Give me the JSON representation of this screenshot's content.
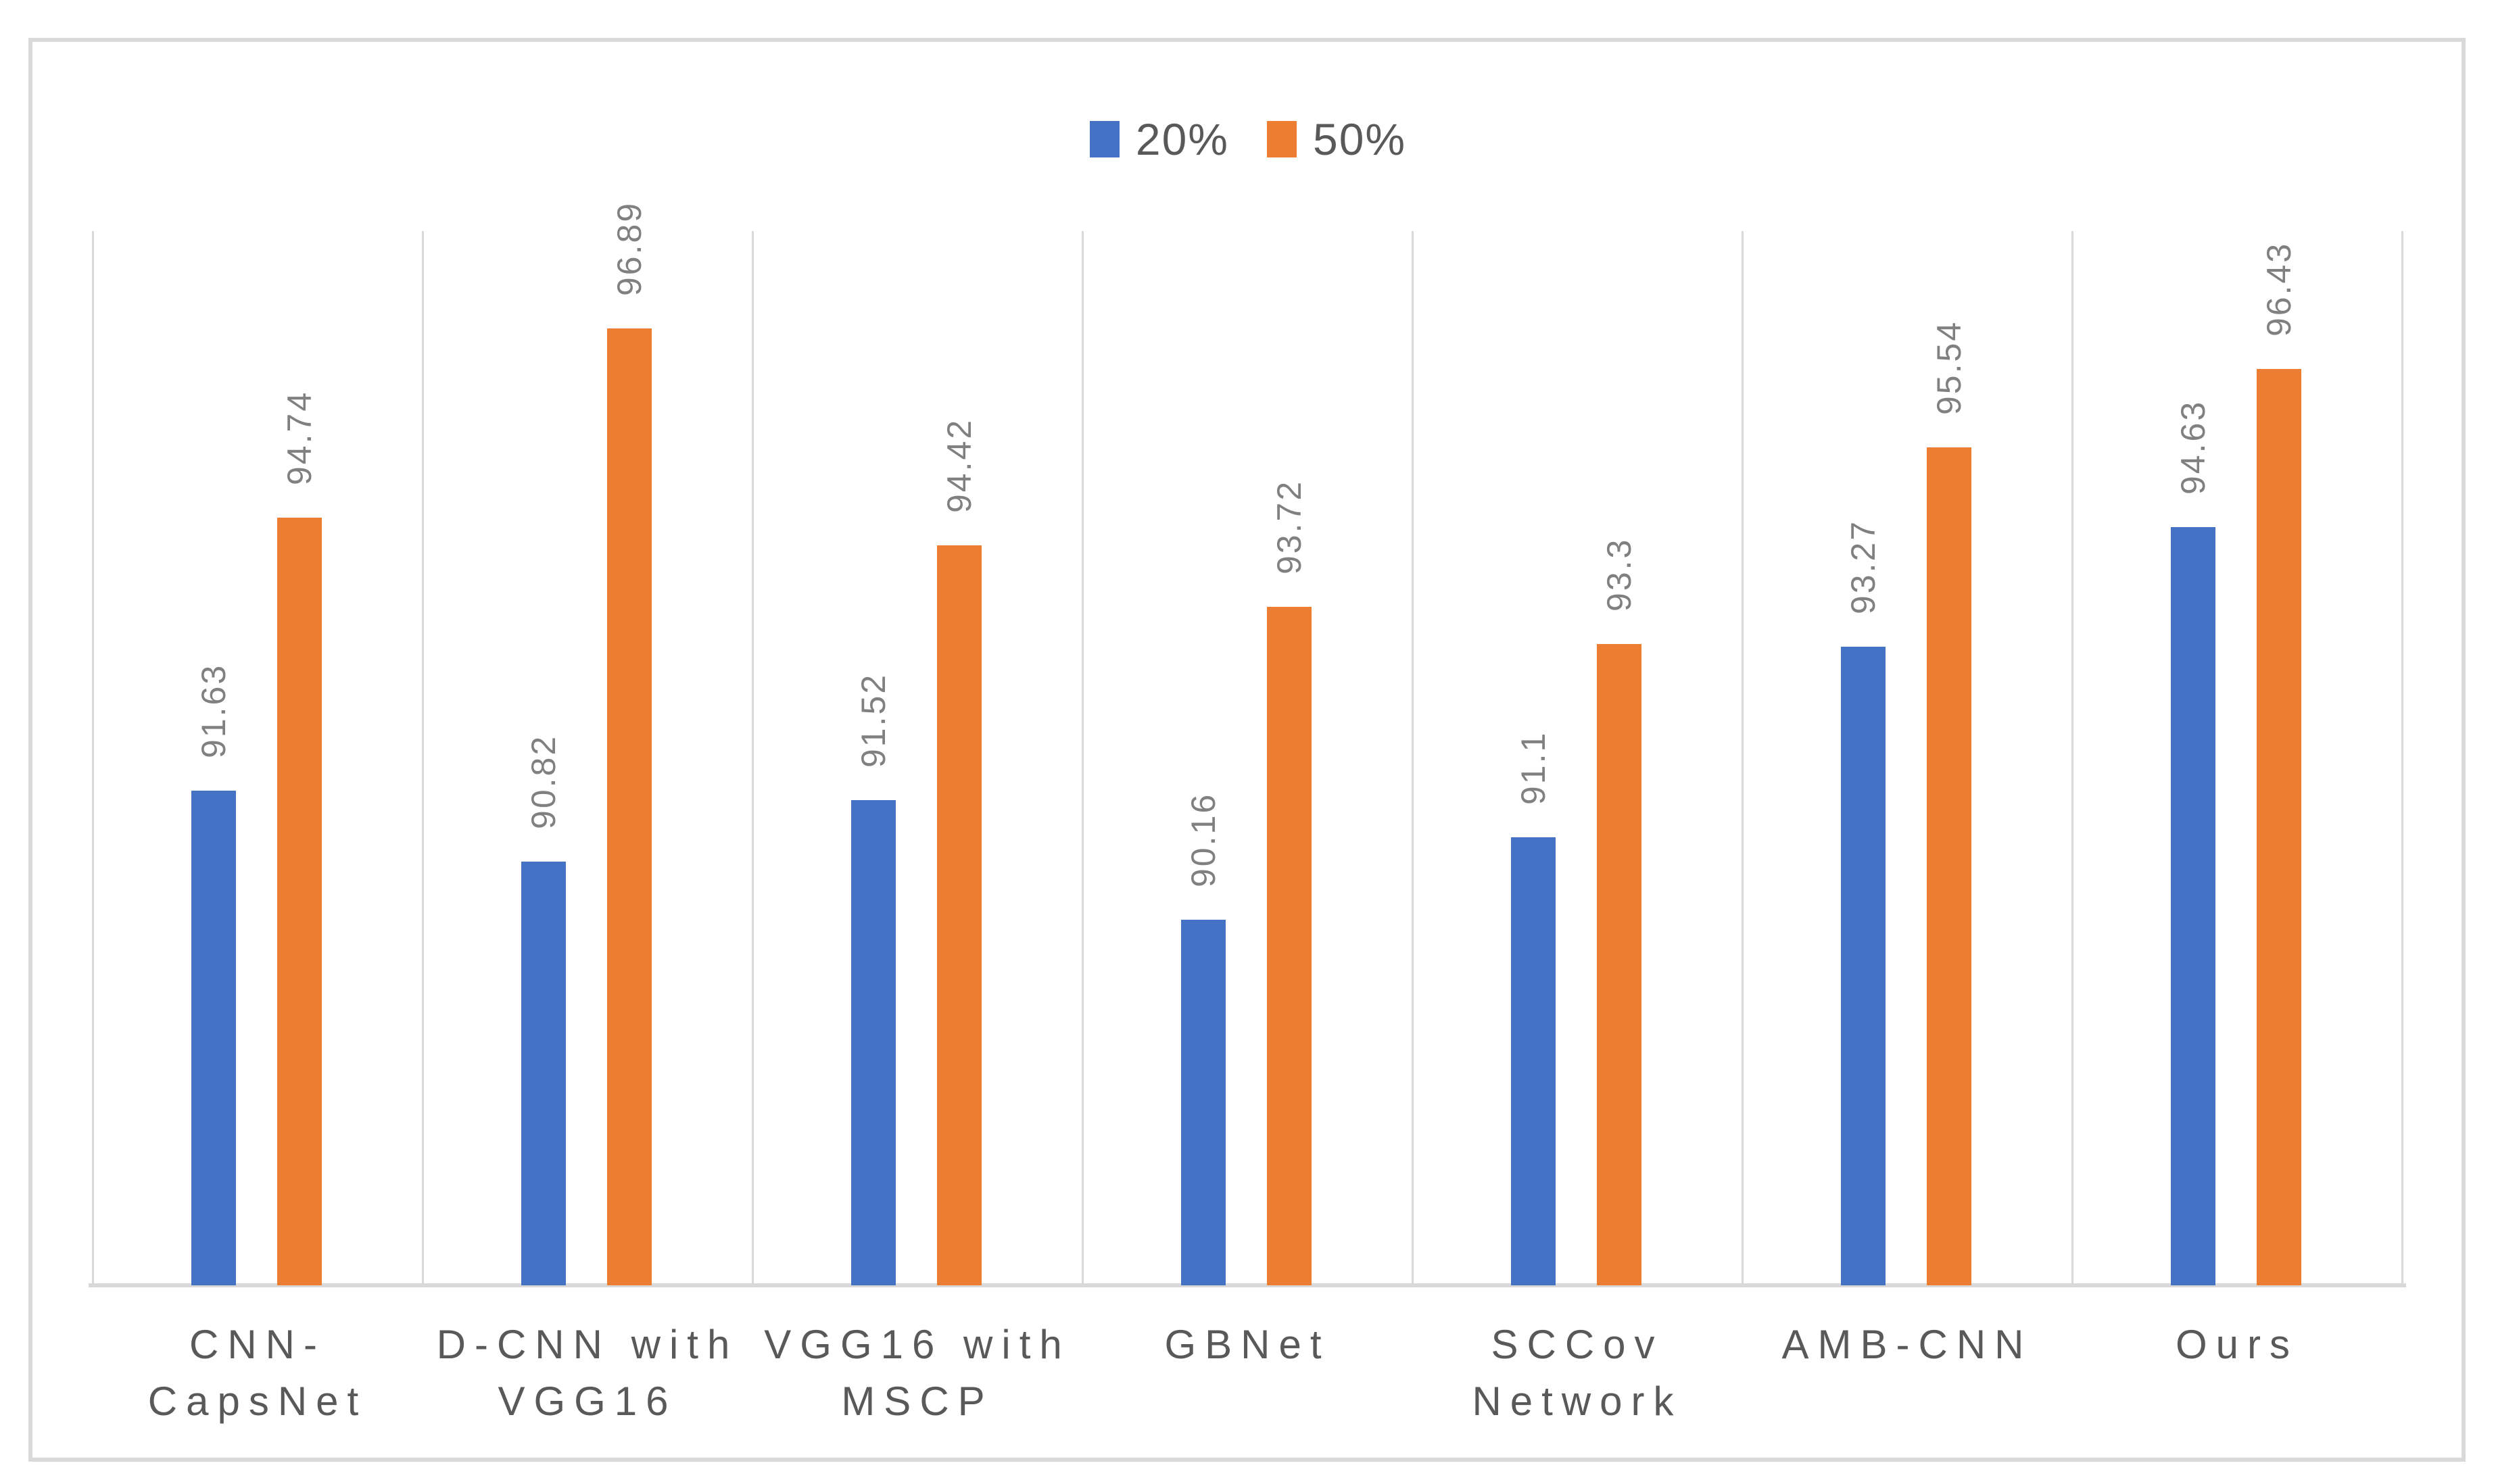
{
  "chart_data": {
    "type": "bar",
    "title": "",
    "categories": [
      "CNN-CapsNet",
      "D-CNN with\nVGG16",
      "VGG16 with\nMSCP",
      "GBNet",
      "SCCov\nNetwork",
      "AMB-CNN",
      "Ours"
    ],
    "series": [
      {
        "name": "20%",
        "color": "#4472C4",
        "values": [
          91.63,
          90.82,
          91.52,
          90.16,
          91.1,
          93.27,
          94.63
        ]
      },
      {
        "name": "50%",
        "color": "#ED7D31",
        "values": [
          94.74,
          96.89,
          94.42,
          93.72,
          93.3,
          95.54,
          96.43
        ]
      }
    ],
    "ylim": [
      86,
      98
    ],
    "xlabel": "",
    "ylabel": "",
    "value_axis_visible": false,
    "grid": "vertical-category-separators",
    "legend_position": "top-center",
    "data_label_rotation": -90,
    "colors": {
      "gridline": "#D9D9D9",
      "axis_line": "#D9D9D9",
      "data_label": "#808080",
      "category_label": "#595959",
      "legend_text": "#595959",
      "chart_border": "#D9D9D9"
    }
  },
  "legend": {
    "items": [
      {
        "label": "20%",
        "color": "#4472C4"
      },
      {
        "label": "50%",
        "color": "#ED7D31"
      }
    ]
  }
}
